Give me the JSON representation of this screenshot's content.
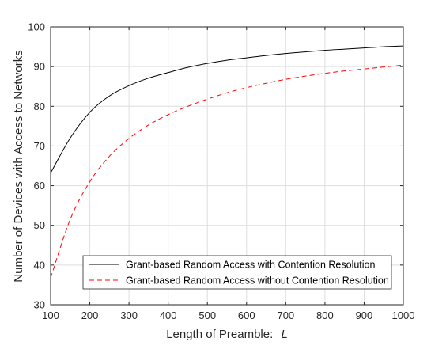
{
  "chart_data": {
    "type": "line",
    "title": "",
    "xlabel": "Length of Preamble:",
    "xlabel_var": "L",
    "ylabel": "Number of Devices with Access to Networks",
    "xlim": [
      100,
      1000
    ],
    "ylim": [
      30,
      100
    ],
    "xticks": [
      "100",
      "200",
      "300",
      "400",
      "500",
      "600",
      "700",
      "800",
      "900",
      "1000"
    ],
    "yticks": [
      "30",
      "40",
      "50",
      "60",
      "70",
      "80",
      "90",
      "100"
    ],
    "grid": true,
    "legend_position": "bottom-right",
    "x": [
      100,
      150,
      200,
      250,
      300,
      350,
      400,
      450,
      500,
      550,
      600,
      650,
      700,
      750,
      800,
      850,
      900,
      950,
      1000
    ],
    "series": [
      {
        "name": "Grant-based Random Access with Contention Resolution",
        "color": "#000000",
        "style": "solid",
        "values": [
          63.2,
          72.0,
          78.5,
          82.6,
          85.2,
          87.1,
          88.5,
          89.8,
          90.8,
          91.6,
          92.2,
          92.8,
          93.3,
          93.7,
          94.1,
          94.4,
          94.7,
          95.0,
          95.2
        ]
      },
      {
        "name": "Grant-based Random Access without Contention Resolution",
        "color": "#ff0000",
        "style": "dashed",
        "values": [
          36.8,
          51.5,
          61.0,
          67.4,
          71.9,
          75.3,
          77.9,
          80.0,
          81.8,
          83.4,
          84.7,
          85.8,
          86.8,
          87.6,
          88.3,
          88.9,
          89.4,
          89.9,
          90.4
        ]
      }
    ]
  }
}
